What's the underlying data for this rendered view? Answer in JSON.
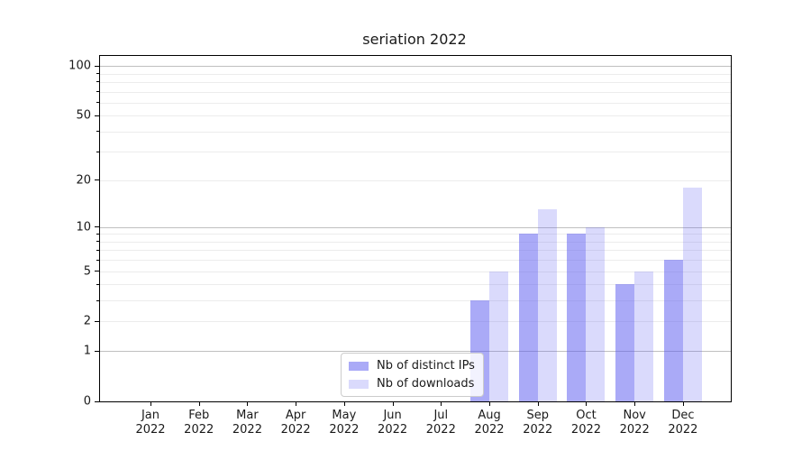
{
  "chart_data": {
    "type": "bar",
    "title": "seriation 2022",
    "categories": [
      "Jan",
      "Feb",
      "Mar",
      "Apr",
      "May",
      "Jun",
      "Jul",
      "Aug",
      "Sep",
      "Oct",
      "Nov",
      "Dec"
    ],
    "category_year": "2022",
    "series": [
      {
        "name": "Nb of distinct IPs",
        "color": "#a7a7f7",
        "fill": "rgba(85,85,240,0.50)",
        "values": [
          0,
          0,
          0,
          0,
          0,
          0,
          0,
          3,
          9,
          9,
          4,
          6
        ]
      },
      {
        "name": "Nb of downloads",
        "color": "#d9d9fa",
        "fill": "rgba(85,85,240,0.22)",
        "values": [
          0,
          0,
          0,
          0,
          0,
          0,
          0,
          5,
          13,
          10,
          5,
          18
        ]
      }
    ],
    "y_scale": "log1p",
    "ylim": [
      0,
      115
    ],
    "y_ticks": [
      0,
      1,
      2,
      5,
      10,
      20,
      50,
      100
    ],
    "y_major_gridlines": [
      1,
      10,
      100
    ],
    "y_minor_gridlines": [
      2,
      3,
      4,
      5,
      6,
      7,
      8,
      9,
      20,
      30,
      40,
      50,
      60,
      70,
      80,
      90
    ],
    "grid_major_color": "#c0c0c0",
    "grid_minor_color": "#ececec",
    "axis_color": "#000000",
    "text_color": "#1a1a1a",
    "legend_position": "lower center",
    "grid": "on"
  }
}
